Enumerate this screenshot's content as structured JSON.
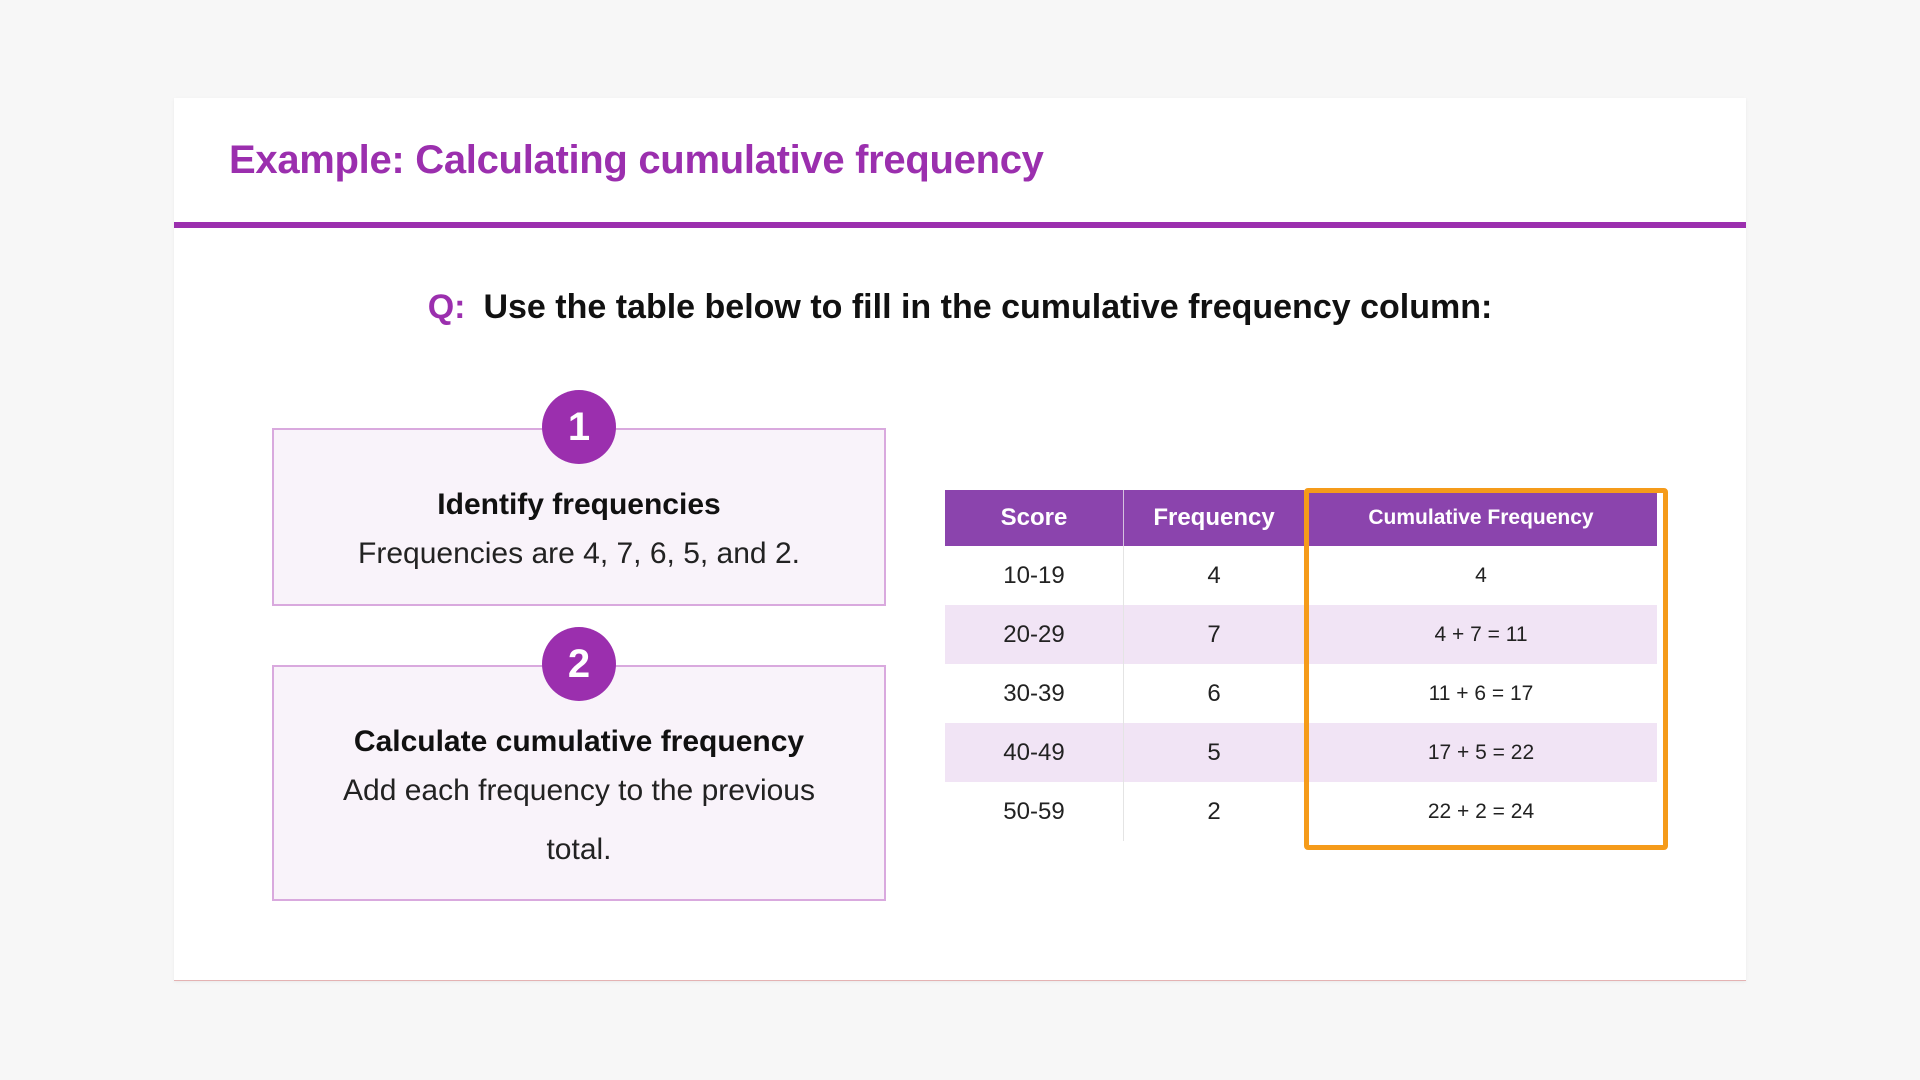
{
  "title": "Example: Calculating cumulative frequency",
  "question": {
    "label": "Q:",
    "text": "Use the table below to fill in the cumulative frequency column:"
  },
  "steps": [
    {
      "number": "1",
      "heading": "Identify frequencies",
      "text": "Frequencies are 4, 7, 6, 5, and 2."
    },
    {
      "number": "2",
      "heading": "Calculate cumulative frequency",
      "text": "Add each frequency to the previous total."
    }
  ],
  "table": {
    "headers": [
      "Score",
      "Frequency",
      "Cumulative Frequency"
    ],
    "rows": [
      {
        "score": "10-19",
        "frequency": "4",
        "cumulative": "4"
      },
      {
        "score": "20-29",
        "frequency": "7",
        "cumulative": "4 + 7 = 11"
      },
      {
        "score": "30-39",
        "frequency": "6",
        "cumulative": "11 + 6 = 17"
      },
      {
        "score": "40-49",
        "frequency": "5",
        "cumulative": "17 + 5 = 22"
      },
      {
        "score": "50-59",
        "frequency": "2",
        "cumulative": "22 + 2 = 24"
      }
    ]
  },
  "colors": {
    "accent": "#9b2fae",
    "table_header": "#8b44ad",
    "row_alt": "#f1e4f5",
    "highlight": "#f59b1a"
  }
}
